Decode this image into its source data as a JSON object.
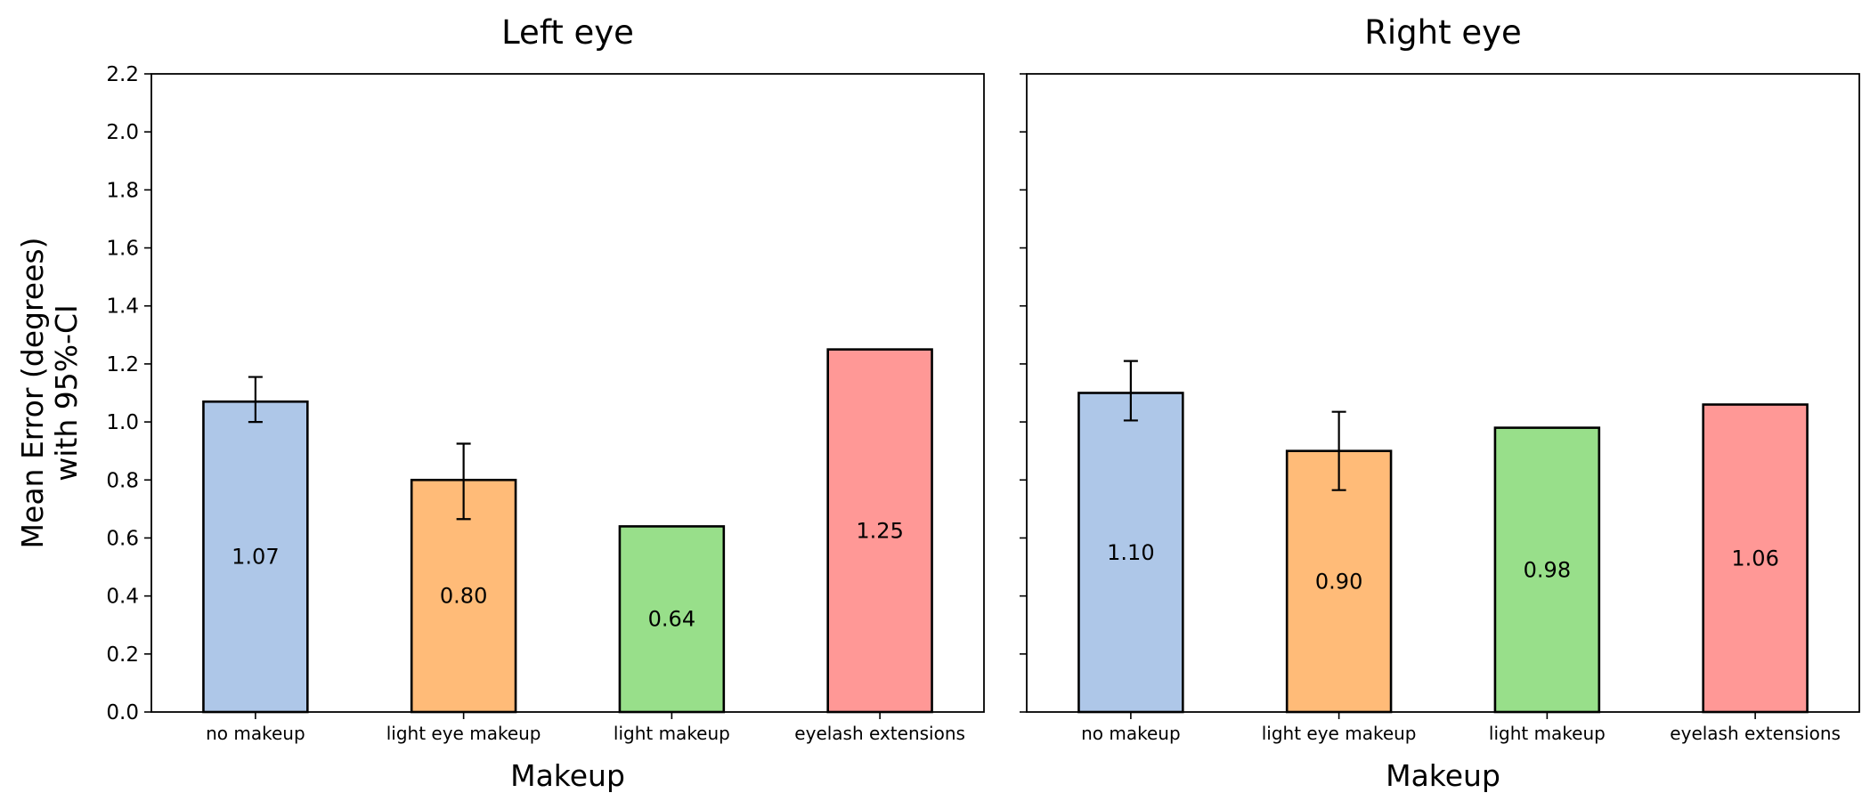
{
  "chart_data": [
    {
      "type": "bar",
      "title": "Left eye",
      "xlabel": "Makeup",
      "ylabel": "Mean Error (degrees)\nwith 95%-CI",
      "categories": [
        "no makeup",
        "light eye makeup",
        "light makeup",
        "eyelash extensions"
      ],
      "values": [
        1.07,
        0.8,
        0.64,
        1.25
      ],
      "value_labels": [
        "1.07",
        "0.80",
        "0.64",
        "1.25"
      ],
      "error_bars": [
        [
          1.0,
          1.155
        ],
        [
          0.665,
          0.925
        ],
        null,
        null
      ],
      "colors": [
        "#aec7e8",
        "#ffbb78",
        "#98df8a",
        "#ff9896"
      ],
      "ylim": [
        0,
        2.2
      ],
      "yticks": [
        "0.0",
        "0.2",
        "0.4",
        "0.6",
        "0.8",
        "1.0",
        "1.2",
        "1.4",
        "1.6",
        "1.8",
        "2.0",
        "2.2"
      ],
      "grid": false
    },
    {
      "type": "bar",
      "title": "Right eye",
      "xlabel": "Makeup",
      "ylabel": "",
      "categories": [
        "no makeup",
        "light eye makeup",
        "light makeup",
        "eyelash extensions"
      ],
      "values": [
        1.1,
        0.9,
        0.98,
        1.06
      ],
      "value_labels": [
        "1.10",
        "0.90",
        "0.98",
        "1.06"
      ],
      "error_bars": [
        [
          1.005,
          1.21
        ],
        [
          0.765,
          1.035
        ],
        null,
        null
      ],
      "colors": [
        "#aec7e8",
        "#ffbb78",
        "#98df8a",
        "#ff9896"
      ],
      "ylim": [
        0,
        2.2
      ],
      "yticks": [],
      "grid": false
    }
  ]
}
